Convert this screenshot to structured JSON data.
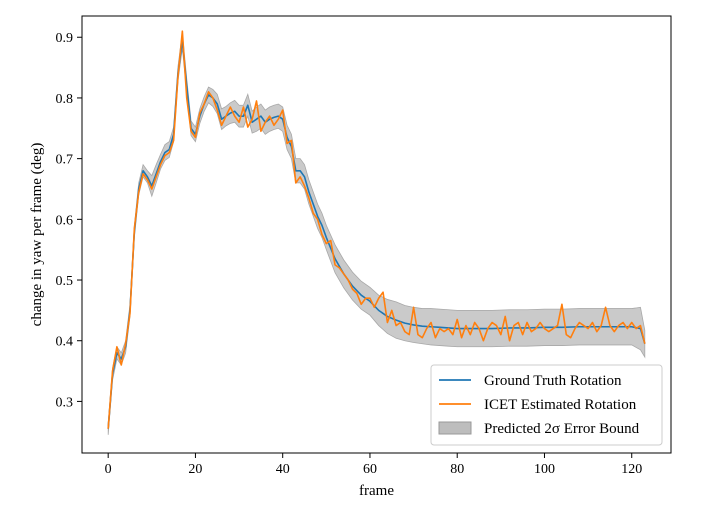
{
  "chart_data": {
    "type": "line",
    "title": "",
    "xlabel": "frame",
    "ylabel": "change in yaw per frame (deg)",
    "xlim": [
      -6,
      129
    ],
    "ylim": [
      0.215,
      0.935
    ],
    "xticks": [
      0,
      20,
      40,
      60,
      80,
      100,
      120
    ],
    "yticks": [
      0.3,
      0.4,
      0.5,
      0.6,
      0.7,
      0.8,
      0.9
    ],
    "xtick_labels": [
      "0",
      "20",
      "40",
      "60",
      "80",
      "100",
      "120"
    ],
    "ytick_labels": [
      "0.3",
      "0.4",
      "0.5",
      "0.6",
      "0.7",
      "0.8",
      "0.9"
    ],
    "grid": false,
    "legend_position": "lower-right",
    "legend": {
      "entries": [
        "Ground Truth Rotation",
        "ICET Estimated Rotation",
        "Predicted 2σ Error Bound"
      ]
    },
    "series": [
      {
        "name": "Ground Truth Rotation",
        "color": "#1f77b4",
        "x": [
          0,
          1,
          2,
          3,
          4,
          5,
          6,
          7,
          8,
          9,
          10,
          11,
          12,
          13,
          14,
          15,
          16,
          17,
          18,
          19,
          20,
          21,
          22,
          23,
          24,
          25,
          26,
          27,
          28,
          29,
          30,
          31,
          32,
          33,
          34,
          35,
          36,
          37,
          38,
          39,
          40,
          41,
          42,
          43,
          44,
          45,
          46,
          47,
          48,
          49,
          50,
          52,
          54,
          56,
          58,
          60,
          62,
          64,
          66,
          68,
          70,
          72,
          74,
          76,
          78,
          80,
          84,
          88,
          92,
          96,
          100,
          104,
          108,
          112,
          116,
          120,
          122,
          123
        ],
        "y": [
          0.255,
          0.345,
          0.38,
          0.37,
          0.39,
          0.45,
          0.58,
          0.65,
          0.68,
          0.67,
          0.655,
          0.675,
          0.695,
          0.71,
          0.715,
          0.74,
          0.84,
          0.895,
          0.82,
          0.75,
          0.74,
          0.77,
          0.79,
          0.805,
          0.8,
          0.79,
          0.765,
          0.77,
          0.775,
          0.778,
          0.77,
          0.77,
          0.788,
          0.76,
          0.765,
          0.77,
          0.76,
          0.765,
          0.768,
          0.77,
          0.765,
          0.735,
          0.72,
          0.68,
          0.68,
          0.67,
          0.645,
          0.625,
          0.605,
          0.59,
          0.57,
          0.535,
          0.51,
          0.49,
          0.475,
          0.465,
          0.45,
          0.44,
          0.434,
          0.429,
          0.426,
          0.424,
          0.423,
          0.422,
          0.421,
          0.42,
          0.42,
          0.42,
          0.421,
          0.421,
          0.422,
          0.422,
          0.423,
          0.423,
          0.423,
          0.423,
          0.42,
          0.395
        ]
      },
      {
        "name": "ICET Estimated Rotation",
        "color": "#ff7f0e",
        "x": [
          0,
          1,
          2,
          3,
          4,
          5,
          6,
          7,
          8,
          9,
          10,
          11,
          12,
          13,
          14,
          15,
          16,
          17,
          18,
          19,
          20,
          21,
          22,
          23,
          24,
          25,
          26,
          27,
          28,
          29,
          30,
          31,
          32,
          33,
          34,
          35,
          36,
          37,
          38,
          39,
          40,
          41,
          42,
          43,
          44,
          45,
          46,
          47,
          48,
          49,
          50,
          51,
          52,
          53,
          54,
          55,
          56,
          57,
          58,
          59,
          60,
          61,
          62,
          63,
          64,
          65,
          66,
          67,
          68,
          69,
          70,
          71,
          72,
          73,
          74,
          75,
          76,
          77,
          78,
          79,
          80,
          81,
          82,
          83,
          84,
          85,
          86,
          87,
          88,
          89,
          90,
          91,
          92,
          93,
          94,
          95,
          96,
          97,
          98,
          99,
          100,
          101,
          102,
          103,
          104,
          105,
          106,
          107,
          108,
          109,
          110,
          111,
          112,
          113,
          114,
          115,
          116,
          117,
          118,
          119,
          120,
          121,
          122,
          123
        ],
        "y": [
          0.255,
          0.35,
          0.39,
          0.36,
          0.395,
          0.445,
          0.585,
          0.645,
          0.675,
          0.665,
          0.65,
          0.67,
          0.69,
          0.705,
          0.71,
          0.73,
          0.835,
          0.91,
          0.8,
          0.745,
          0.735,
          0.775,
          0.79,
          0.81,
          0.8,
          0.78,
          0.755,
          0.77,
          0.785,
          0.77,
          0.76,
          0.785,
          0.752,
          0.765,
          0.795,
          0.745,
          0.76,
          0.77,
          0.755,
          0.765,
          0.78,
          0.725,
          0.73,
          0.66,
          0.67,
          0.655,
          0.635,
          0.61,
          0.6,
          0.575,
          0.56,
          0.565,
          0.525,
          0.52,
          0.51,
          0.5,
          0.485,
          0.478,
          0.46,
          0.47,
          0.47,
          0.455,
          0.47,
          0.48,
          0.43,
          0.45,
          0.425,
          0.43,
          0.415,
          0.41,
          0.455,
          0.41,
          0.405,
          0.42,
          0.43,
          0.405,
          0.42,
          0.415,
          0.42,
          0.41,
          0.435,
          0.405,
          0.425,
          0.41,
          0.43,
          0.42,
          0.4,
          0.42,
          0.43,
          0.425,
          0.41,
          0.44,
          0.4,
          0.425,
          0.43,
          0.41,
          0.43,
          0.415,
          0.42,
          0.43,
          0.42,
          0.415,
          0.42,
          0.425,
          0.46,
          0.41,
          0.405,
          0.42,
          0.43,
          0.425,
          0.42,
          0.43,
          0.415,
          0.425,
          0.455,
          0.425,
          0.415,
          0.425,
          0.43,
          0.42,
          0.43,
          0.42,
          0.425,
          0.395
        ]
      }
    ],
    "error_band": {
      "name": "Predicted 2σ Error Bound",
      "color": "#bdbdbd",
      "x": [
        0,
        1,
        2,
        3,
        4,
        5,
        6,
        7,
        8,
        9,
        10,
        11,
        12,
        13,
        14,
        15,
        16,
        17,
        18,
        19,
        20,
        21,
        22,
        23,
        24,
        25,
        26,
        27,
        28,
        29,
        30,
        31,
        32,
        33,
        34,
        35,
        36,
        37,
        38,
        39,
        40,
        41,
        42,
        43,
        44,
        45,
        46,
        47,
        48,
        49,
        50,
        52,
        54,
        56,
        58,
        60,
        62,
        64,
        66,
        68,
        70,
        72,
        74,
        76,
        78,
        80,
        84,
        88,
        92,
        96,
        100,
        104,
        108,
        112,
        116,
        120,
        122,
        123
      ],
      "lower": [
        0.245,
        0.335,
        0.37,
        0.36,
        0.38,
        0.44,
        0.57,
        0.64,
        0.67,
        0.66,
        0.638,
        0.66,
        0.683,
        0.697,
        0.702,
        0.728,
        0.828,
        0.882,
        0.808,
        0.738,
        0.728,
        0.758,
        0.778,
        0.792,
        0.786,
        0.774,
        0.748,
        0.754,
        0.758,
        0.76,
        0.752,
        0.752,
        0.77,
        0.742,
        0.745,
        0.75,
        0.74,
        0.745,
        0.748,
        0.75,
        0.745,
        0.715,
        0.7,
        0.66,
        0.66,
        0.65,
        0.625,
        0.605,
        0.585,
        0.57,
        0.55,
        0.512,
        0.487,
        0.467,
        0.452,
        0.442,
        0.425,
        0.412,
        0.404,
        0.4,
        0.397,
        0.395,
        0.393,
        0.392,
        0.391,
        0.39,
        0.39,
        0.39,
        0.391,
        0.391,
        0.392,
        0.392,
        0.393,
        0.393,
        0.393,
        0.393,
        0.385,
        0.373
      ],
      "upper": [
        0.265,
        0.355,
        0.39,
        0.38,
        0.4,
        0.46,
        0.59,
        0.66,
        0.69,
        0.68,
        0.672,
        0.69,
        0.707,
        0.723,
        0.728,
        0.752,
        0.852,
        0.908,
        0.832,
        0.762,
        0.752,
        0.782,
        0.802,
        0.818,
        0.814,
        0.806,
        0.782,
        0.786,
        0.792,
        0.796,
        0.788,
        0.788,
        0.806,
        0.778,
        0.785,
        0.79,
        0.78,
        0.785,
        0.788,
        0.79,
        0.785,
        0.755,
        0.74,
        0.7,
        0.7,
        0.69,
        0.665,
        0.645,
        0.625,
        0.61,
        0.59,
        0.558,
        0.533,
        0.513,
        0.498,
        0.488,
        0.475,
        0.468,
        0.464,
        0.458,
        0.455,
        0.453,
        0.453,
        0.452,
        0.451,
        0.45,
        0.45,
        0.45,
        0.451,
        0.451,
        0.452,
        0.452,
        0.453,
        0.453,
        0.453,
        0.453,
        0.455,
        0.417
      ]
    }
  }
}
